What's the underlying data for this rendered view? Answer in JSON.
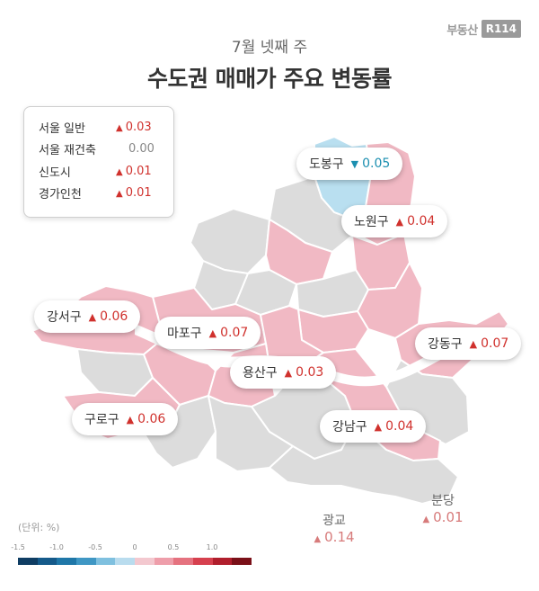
{
  "brand": {
    "text": "부동산",
    "mark": "R114"
  },
  "subtitle": "7월 넷째 주",
  "title": "수도권 매매가 주요 변동률",
  "summary": [
    {
      "name": "서울 일반",
      "direction": "up",
      "value": "0.03"
    },
    {
      "name": "서울 재건축",
      "direction": "none",
      "value": "0.00"
    },
    {
      "name": "신도시",
      "direction": "up",
      "value": "0.01"
    },
    {
      "name": "경가인천",
      "direction": "up",
      "value": "0.01"
    }
  ],
  "districts": [
    {
      "name": "도봉구",
      "direction": "down",
      "value": "0.05"
    },
    {
      "name": "노원구",
      "direction": "up",
      "value": "0.04"
    },
    {
      "name": "강서구",
      "direction": "up",
      "value": "0.06"
    },
    {
      "name": "마포구",
      "direction": "up",
      "value": "0.07"
    },
    {
      "name": "강동구",
      "direction": "up",
      "value": "0.07"
    },
    {
      "name": "용산구",
      "direction": "up",
      "value": "0.03"
    },
    {
      "name": "구로구",
      "direction": "up",
      "value": "0.06"
    },
    {
      "name": "강남구",
      "direction": "up",
      "value": "0.04"
    }
  ],
  "outside": [
    {
      "name": "분당",
      "direction": "up",
      "value": "0.01"
    },
    {
      "name": "광교",
      "direction": "up",
      "value": "0.14"
    }
  ],
  "unit_label": "(단위: %)",
  "scale": {
    "ticks": [
      "-1.5",
      "-1.0",
      "-0.5",
      "0",
      "0.5",
      "1.0"
    ],
    "colors": [
      "#0f3d63",
      "#155a8a",
      "#1f77a8",
      "#3f97c4",
      "#7fc0df",
      "#b9dcee",
      "#f3c8cf",
      "#ee9eaa",
      "#e5727f",
      "#d6404e",
      "#b01e2c",
      "#7a1018"
    ]
  },
  "colors": {
    "up": "#d0312d",
    "down": "#1b8fb0",
    "map_gray": "#dcdcdc",
    "map_pink": "#f1b9c4",
    "map_blue": "#b9dff0"
  },
  "icons": {
    "up": "▲",
    "down": "▼"
  }
}
